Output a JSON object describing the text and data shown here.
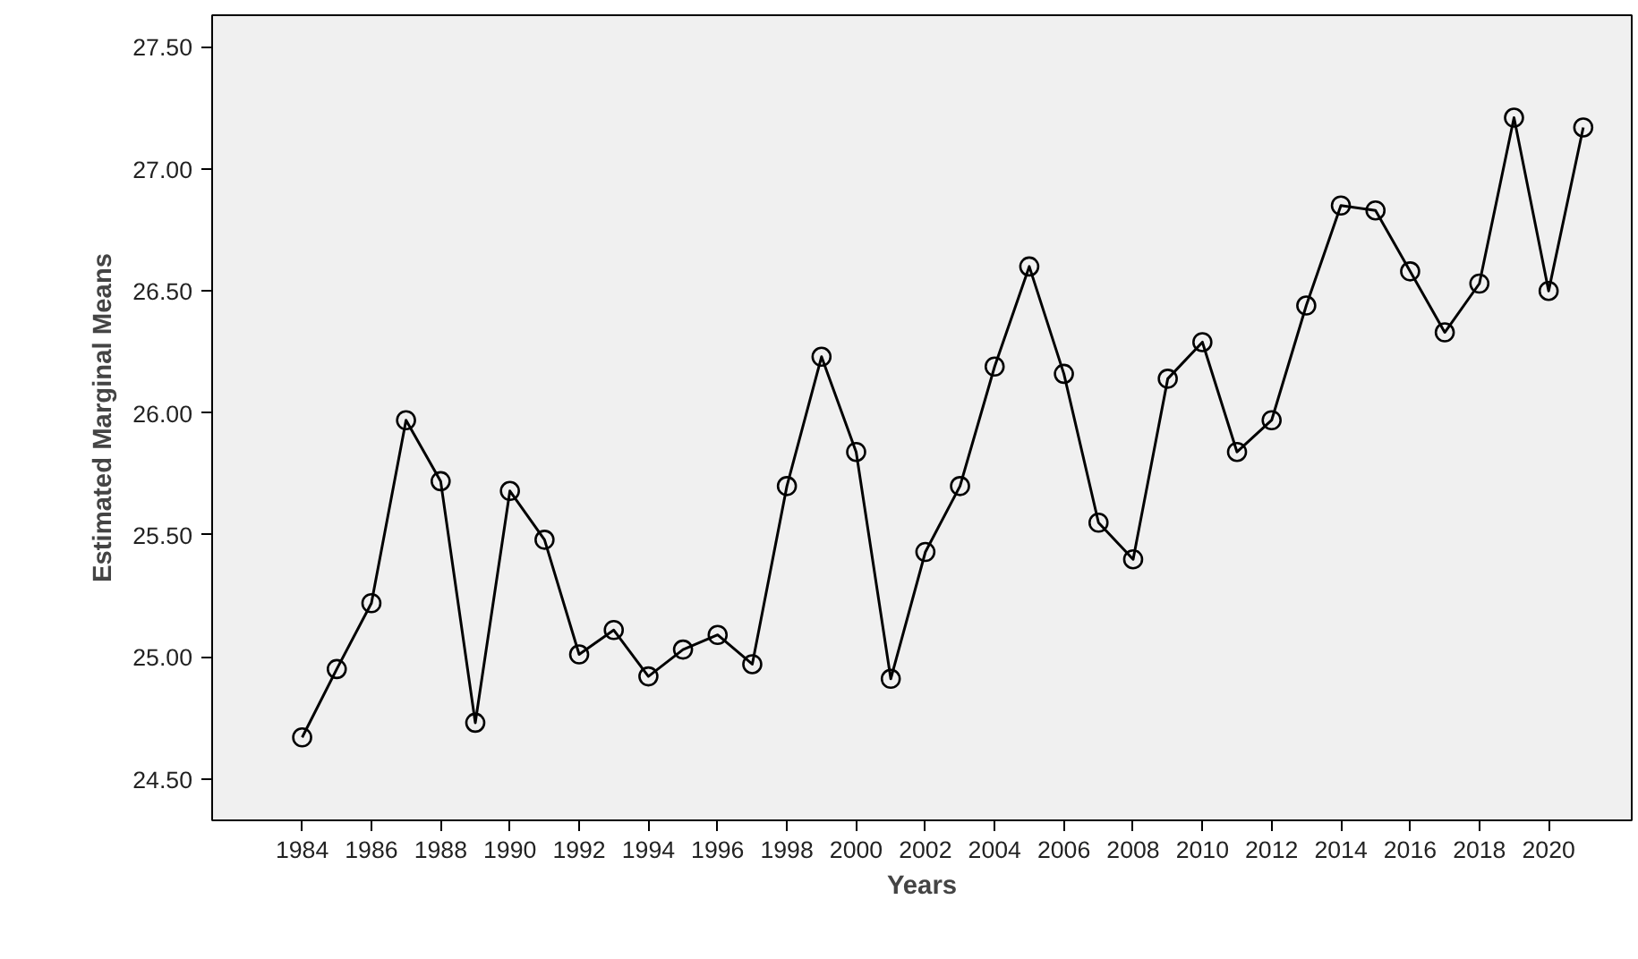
{
  "chart_data": {
    "type": "line",
    "xlabel": "Years",
    "ylabel": "Estimated Marginal Means",
    "x": [
      1984,
      1985,
      1986,
      1987,
      1988,
      1989,
      1990,
      1991,
      1992,
      1993,
      1994,
      1995,
      1996,
      1997,
      1998,
      1999,
      2000,
      2001,
      2002,
      2003,
      2004,
      2005,
      2006,
      2007,
      2008,
      2009,
      2010,
      2011,
      2012,
      2013,
      2014,
      2015,
      2016,
      2017,
      2018,
      2019,
      2020,
      2021
    ],
    "series": [
      {
        "color": "#000000",
        "values": [
          24.67,
          24.95,
          25.22,
          25.97,
          25.72,
          24.73,
          25.68,
          25.48,
          25.01,
          25.11,
          24.92,
          25.03,
          25.09,
          24.97,
          25.7,
          26.23,
          25.84,
          24.91,
          25.43,
          25.7,
          26.19,
          26.6,
          26.16,
          25.55,
          25.4,
          26.14,
          26.29,
          25.84,
          25.97,
          26.44,
          26.85,
          26.83,
          26.58,
          26.33,
          26.53,
          27.21,
          26.5,
          27.17
        ]
      }
    ],
    "xlim": [
      1981.4,
      2022.4
    ],
    "ylim": [
      24.33,
      27.63
    ],
    "xticks": [
      1984,
      1986,
      1988,
      1990,
      1992,
      1994,
      1996,
      1998,
      2000,
      2002,
      2004,
      2006,
      2008,
      2010,
      2012,
      2014,
      2016,
      2018,
      2020
    ],
    "yticks": [
      {
        "value": 24.5,
        "label": "24.50"
      },
      {
        "value": 25.0,
        "label": "25.00"
      },
      {
        "value": 25.5,
        "label": "25.50"
      },
      {
        "value": 26.0,
        "label": "26.00"
      },
      {
        "value": 26.5,
        "label": "26.50"
      },
      {
        "value": 27.0,
        "label": "27.00"
      },
      {
        "value": 27.5,
        "label": "27.50"
      }
    ],
    "marker": "circle",
    "line_style": "solid",
    "grid": false
  }
}
